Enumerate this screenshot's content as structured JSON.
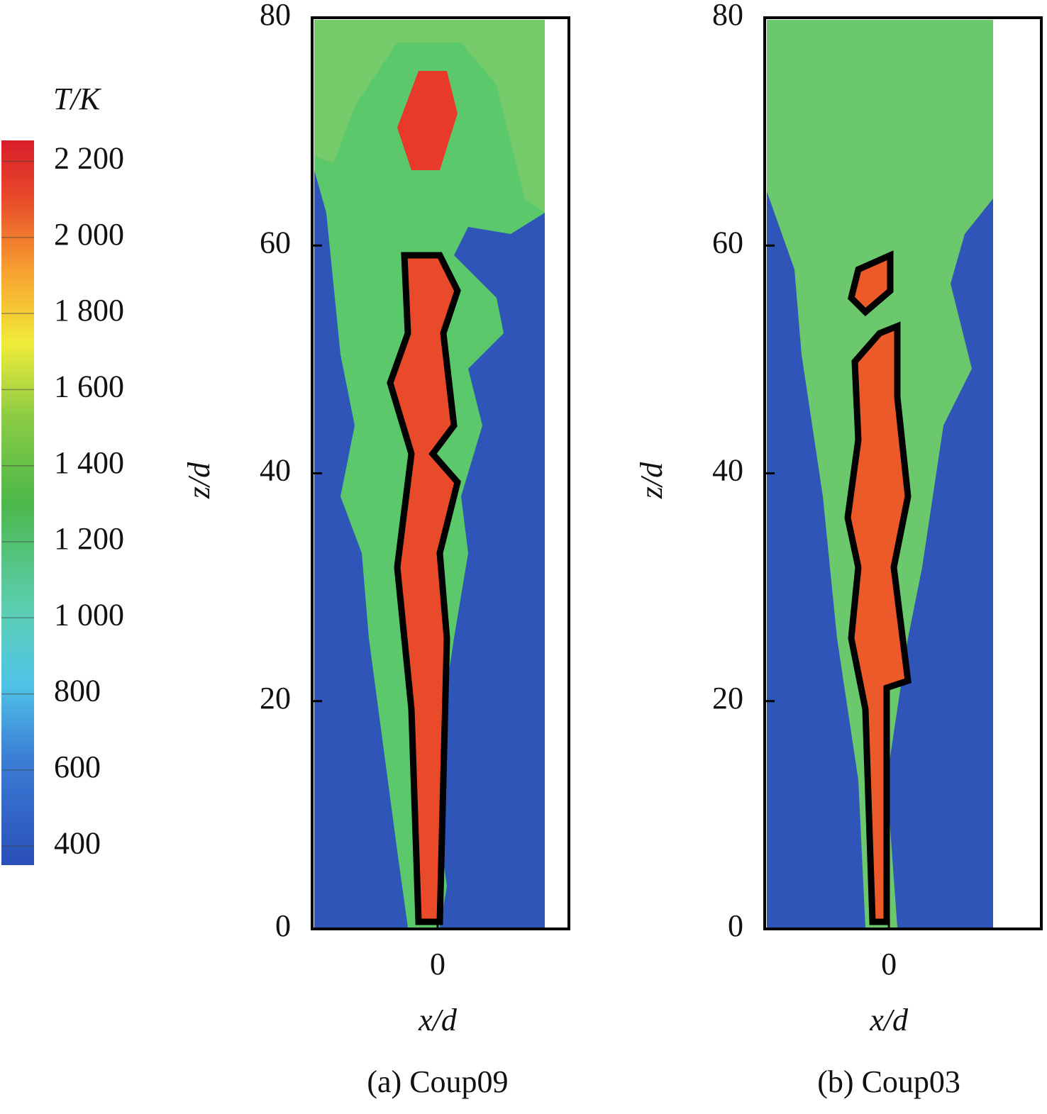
{
  "colorbar": {
    "title": "T/K",
    "lim": [
      350,
      2255
    ],
    "ticks": [
      {
        "value": 2200,
        "label": "2 200"
      },
      {
        "value": 2000,
        "label": "2 000"
      },
      {
        "value": 1800,
        "label": "1 800"
      },
      {
        "value": 1600,
        "label": "1 600"
      },
      {
        "value": 1400,
        "label": "1 400"
      },
      {
        "value": 1200,
        "label": "1 200"
      },
      {
        "value": 1000,
        "label": "1 000"
      },
      800,
      600,
      400
    ]
  },
  "chart_data": [
    {
      "type": "contour",
      "caption": "(a) Coup09",
      "xlabel": "x/d",
      "ylabel": "z/d",
      "xlim": [
        -11,
        11.5
      ],
      "xticks": [
        0
      ],
      "ylim": [
        0,
        80
      ],
      "yticks": [
        0,
        20,
        40,
        60,
        80
      ]
    },
    {
      "type": "contour",
      "caption": "(b) Coup03",
      "xlabel": "x/d",
      "ylabel": "z/d",
      "xlim": [
        -11,
        13.5
      ],
      "xticks": [
        0
      ],
      "ylim": [
        0,
        80
      ],
      "yticks": [
        0,
        20,
        40,
        60,
        80
      ]
    }
  ]
}
